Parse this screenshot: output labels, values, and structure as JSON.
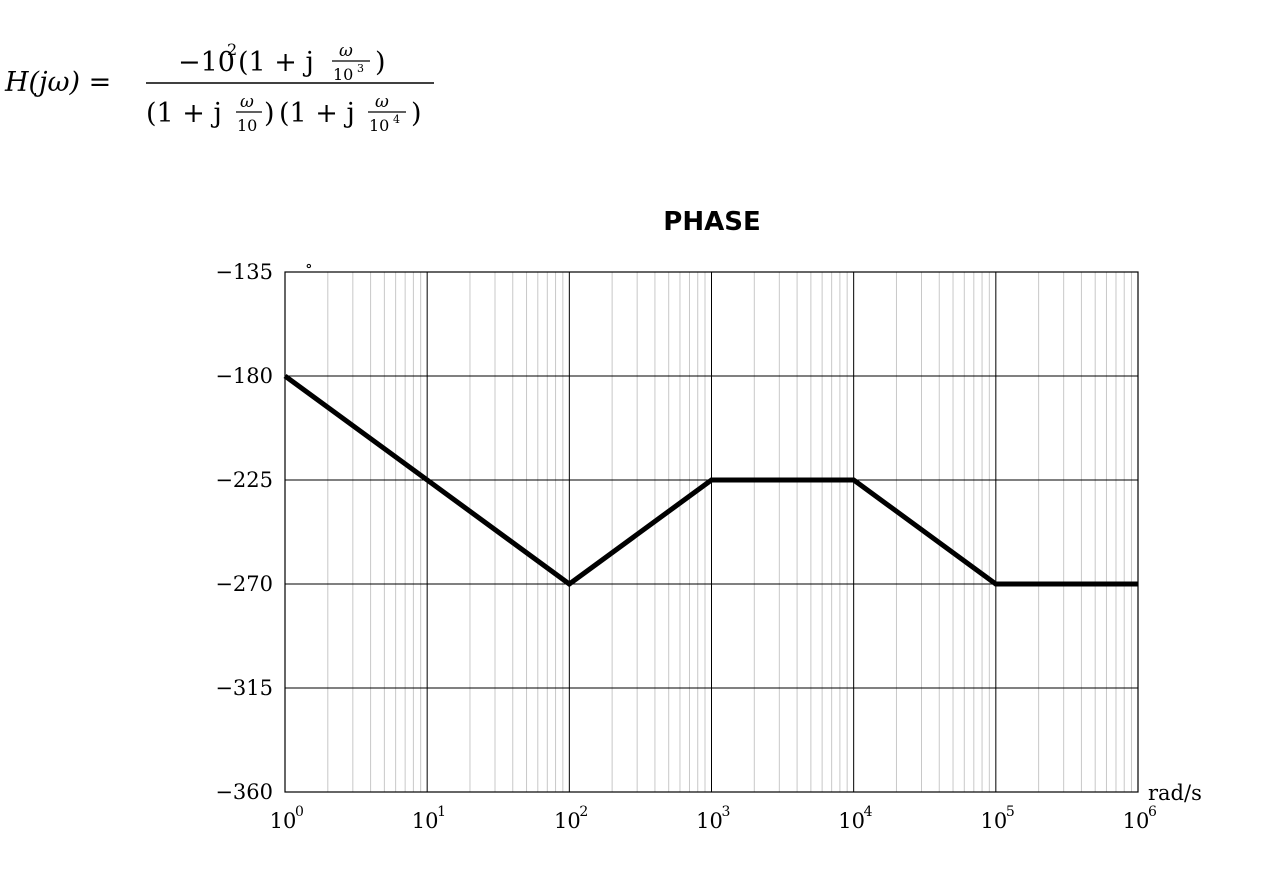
{
  "formula": {
    "lhs": "H(jω) =",
    "numerator": {
      "coef": "−10",
      "coef_exp": "2",
      "factor_open": "(1 + j",
      "frac_num": "ω",
      "frac_den": "10",
      "frac_den_exp": "3",
      "factor_close": ")"
    },
    "denominator": [
      {
        "open": "(1 + j",
        "frac_num": "ω",
        "frac_den": "10",
        "frac_den_exp": "",
        "close": ")"
      },
      {
        "open": "(1 + j",
        "frac_num": "ω",
        "frac_den": "10",
        "frac_den_exp": "4",
        "close": ")"
      }
    ]
  },
  "chart_data": {
    "type": "line",
    "title": "PHASE",
    "xscale": "log",
    "xlim": [
      1,
      1000000
    ],
    "ylim": [
      -360,
      -135
    ],
    "xlabel": "rad/s",
    "ylabel": "",
    "y_ticks": [
      -135,
      -180,
      -225,
      -270,
      -315,
      -360
    ],
    "y_tick_labels": [
      "−135",
      "−180",
      "−225",
      "−270",
      "−315",
      "−360"
    ],
    "x_ticks": [
      1,
      10,
      100,
      1000,
      10000,
      100000,
      1000000
    ],
    "x_tick_labels": [
      {
        "base": "10",
        "exp": "0"
      },
      {
        "base": "10",
        "exp": "1"
      },
      {
        "base": "10",
        "exp": "2"
      },
      {
        "base": "10",
        "exp": "3"
      },
      {
        "base": "10",
        "exp": "4"
      },
      {
        "base": "10",
        "exp": "5"
      },
      {
        "base": "10",
        "exp": "6"
      }
    ],
    "degree_mark": "∘",
    "grid": true,
    "series": [
      {
        "x": [
          1,
          10,
          100,
          1000,
          10000,
          100000,
          1000000
        ],
        "y": [
          -180,
          -225,
          -270,
          -225,
          -225,
          -270,
          -270
        ]
      }
    ],
    "line_color": "#000000"
  }
}
